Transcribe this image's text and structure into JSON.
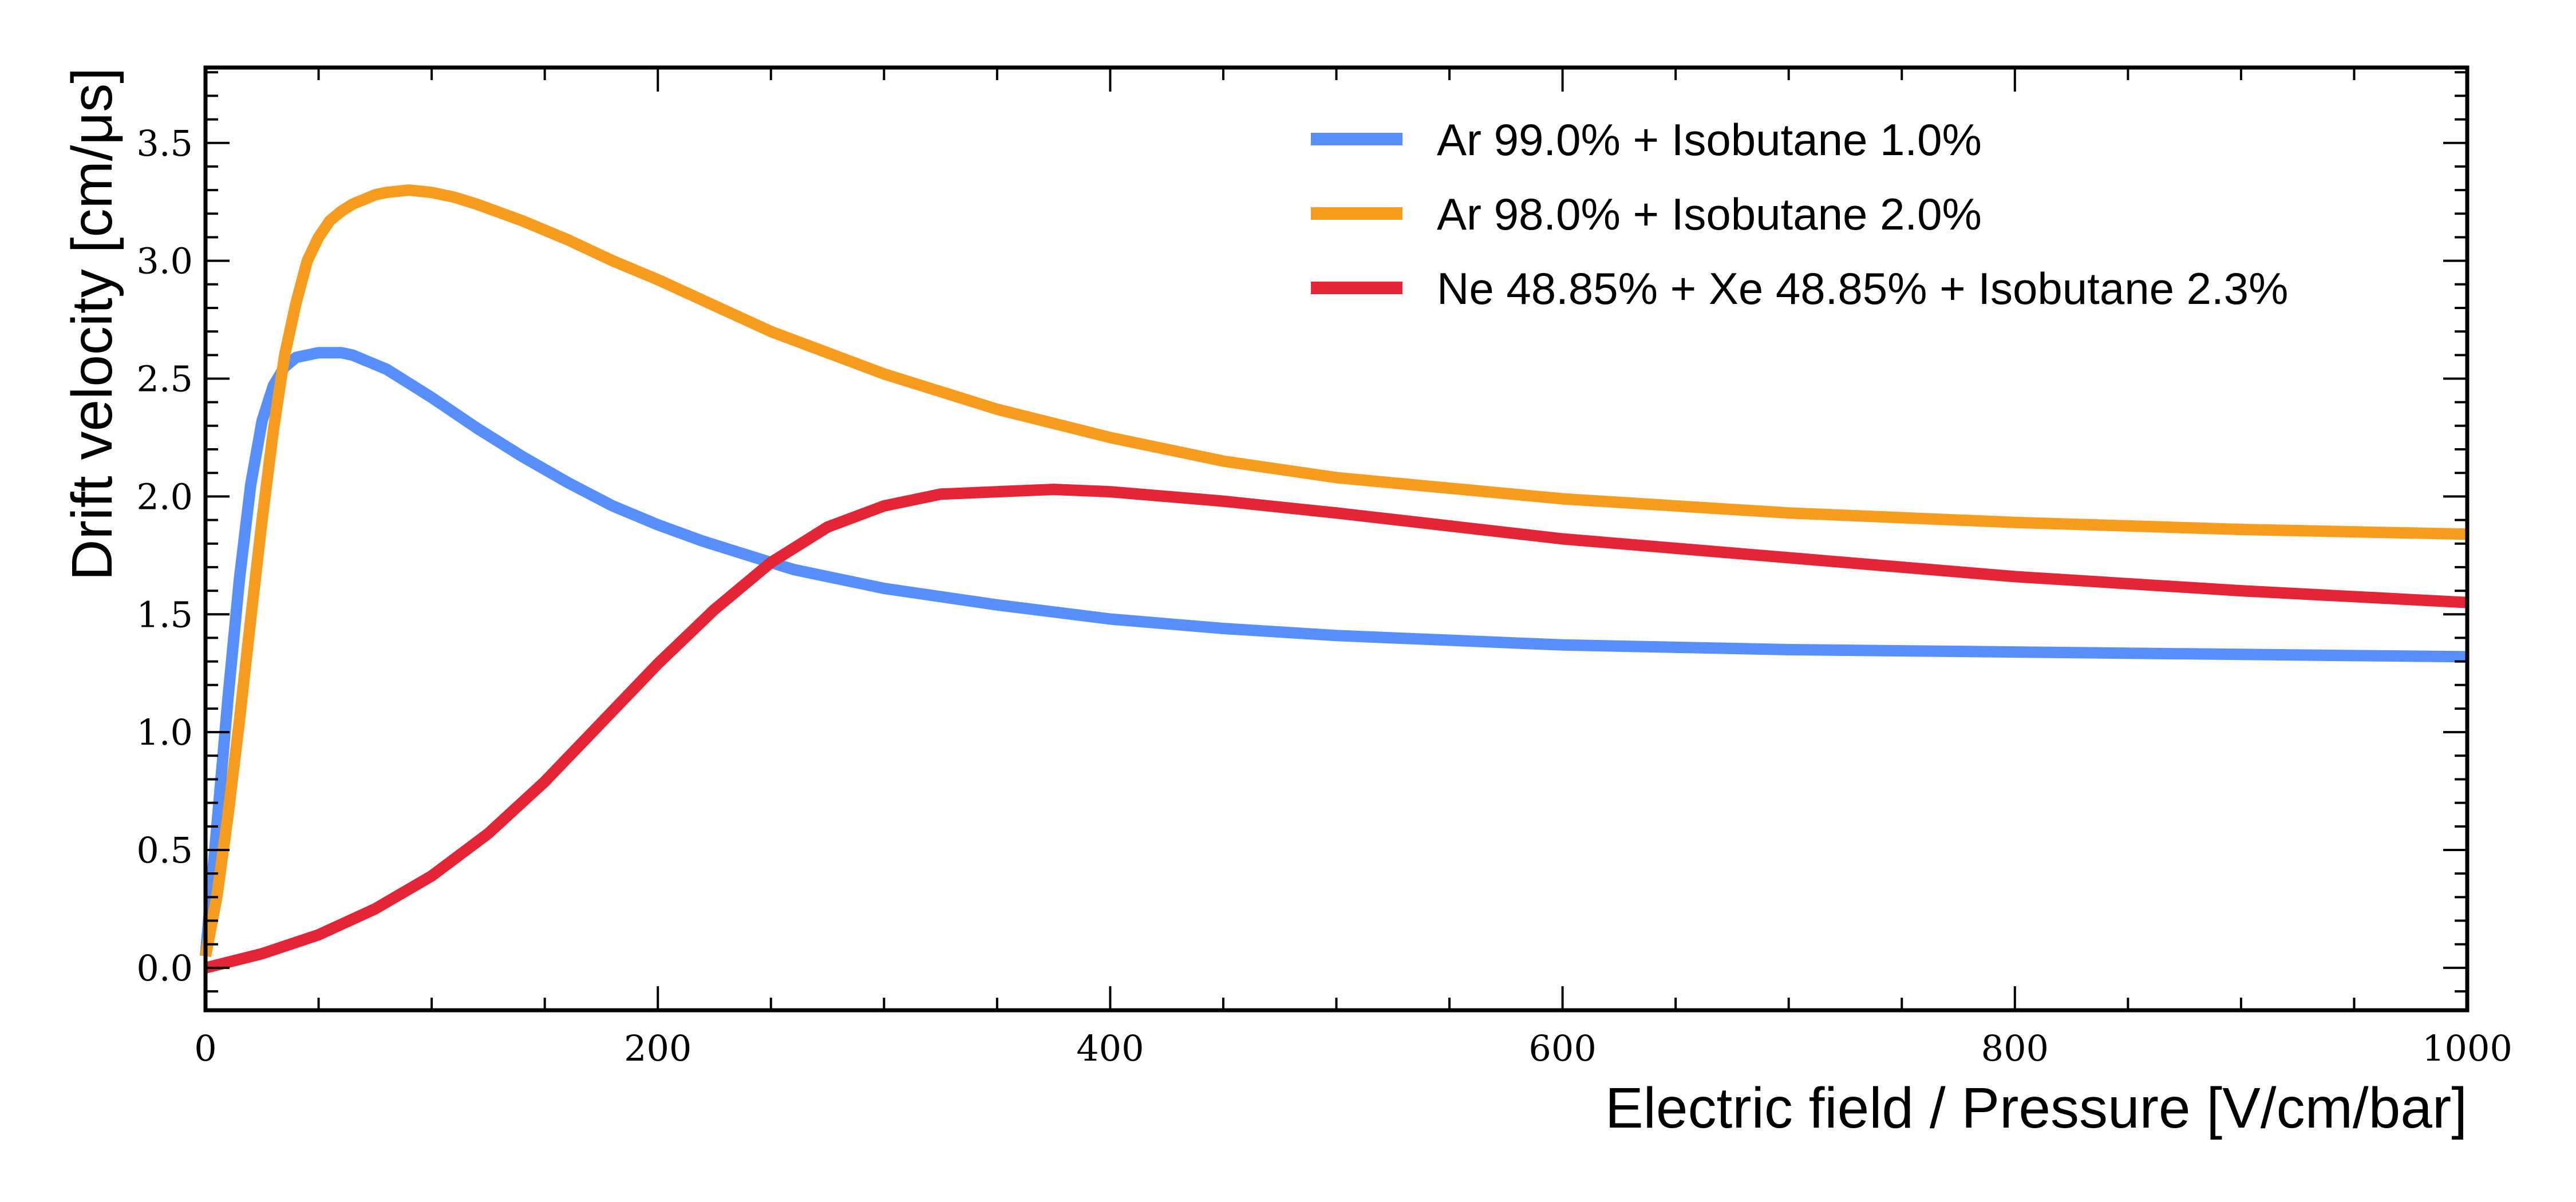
{
  "chart_data": {
    "type": "line",
    "xlabel": "Electric field / Pressure [V/cm/bar]",
    "ylabel": "Drift velocity [cm/μs]",
    "xlim": [
      0,
      1000
    ],
    "ylim": [
      -0.18,
      3.82
    ],
    "xticks": [
      0,
      200,
      400,
      600,
      800,
      1000
    ],
    "xtick_labels": [
      "0",
      "200",
      "400",
      "600",
      "800",
      "1000"
    ],
    "yticks": [
      0.0,
      0.5,
      1.0,
      1.5,
      2.0,
      2.5,
      3.0,
      3.5
    ],
    "ytick_labels": [
      "0.0",
      "0.5",
      "1.0",
      "1.5",
      "2.0",
      "2.5",
      "3.0",
      "3.5"
    ],
    "grid": false,
    "legend_position": "top-right",
    "series": [
      {
        "name": "Ar 99.0% + Isobutane 1.0%",
        "color": "#5790fc",
        "x": [
          0,
          5,
          10,
          15,
          20,
          25,
          30,
          35,
          40,
          45,
          50,
          55,
          60,
          65,
          70,
          80,
          90,
          100,
          120,
          140,
          160,
          180,
          200,
          220,
          240,
          260,
          280,
          300,
          350,
          400,
          450,
          500,
          600,
          700,
          800,
          900,
          1000
        ],
        "y": [
          0.05,
          0.6,
          1.15,
          1.65,
          2.05,
          2.32,
          2.47,
          2.55,
          2.59,
          2.6,
          2.61,
          2.61,
          2.61,
          2.6,
          2.58,
          2.54,
          2.48,
          2.42,
          2.29,
          2.17,
          2.06,
          1.96,
          1.88,
          1.81,
          1.75,
          1.69,
          1.65,
          1.61,
          1.54,
          1.48,
          1.44,
          1.41,
          1.37,
          1.35,
          1.34,
          1.33,
          1.32
        ]
      },
      {
        "name": "Ar 98.0% + Isobutane 2.0%",
        "color": "#f89c20",
        "x": [
          0,
          5,
          10,
          15,
          20,
          25,
          30,
          35,
          40,
          45,
          50,
          55,
          60,
          65,
          70,
          75,
          80,
          90,
          100,
          110,
          120,
          140,
          160,
          180,
          200,
          250,
          300,
          350,
          400,
          450,
          500,
          600,
          700,
          800,
          900,
          1000
        ],
        "y": [
          0.05,
          0.3,
          0.65,
          1.05,
          1.48,
          1.9,
          2.28,
          2.6,
          2.82,
          3.0,
          3.1,
          3.17,
          3.21,
          3.24,
          3.26,
          3.28,
          3.29,
          3.3,
          3.29,
          3.27,
          3.24,
          3.17,
          3.09,
          3.0,
          2.92,
          2.7,
          2.52,
          2.37,
          2.25,
          2.15,
          2.08,
          1.99,
          1.93,
          1.89,
          1.86,
          1.84
        ]
      },
      {
        "name": "Ne 48.85% + Xe 48.85% + Isobutane 2.3%",
        "color": "#e42536",
        "x": [
          0,
          25,
          50,
          75,
          100,
          125,
          150,
          175,
          200,
          225,
          250,
          275,
          300,
          325,
          350,
          375,
          400,
          450,
          500,
          600,
          700,
          800,
          900,
          1000
        ],
        "y": [
          0.0,
          0.06,
          0.14,
          0.25,
          0.39,
          0.57,
          0.79,
          1.04,
          1.29,
          1.52,
          1.72,
          1.87,
          1.96,
          2.01,
          2.02,
          2.03,
          2.02,
          1.98,
          1.93,
          1.82,
          1.74,
          1.66,
          1.6,
          1.55
        ]
      }
    ]
  }
}
